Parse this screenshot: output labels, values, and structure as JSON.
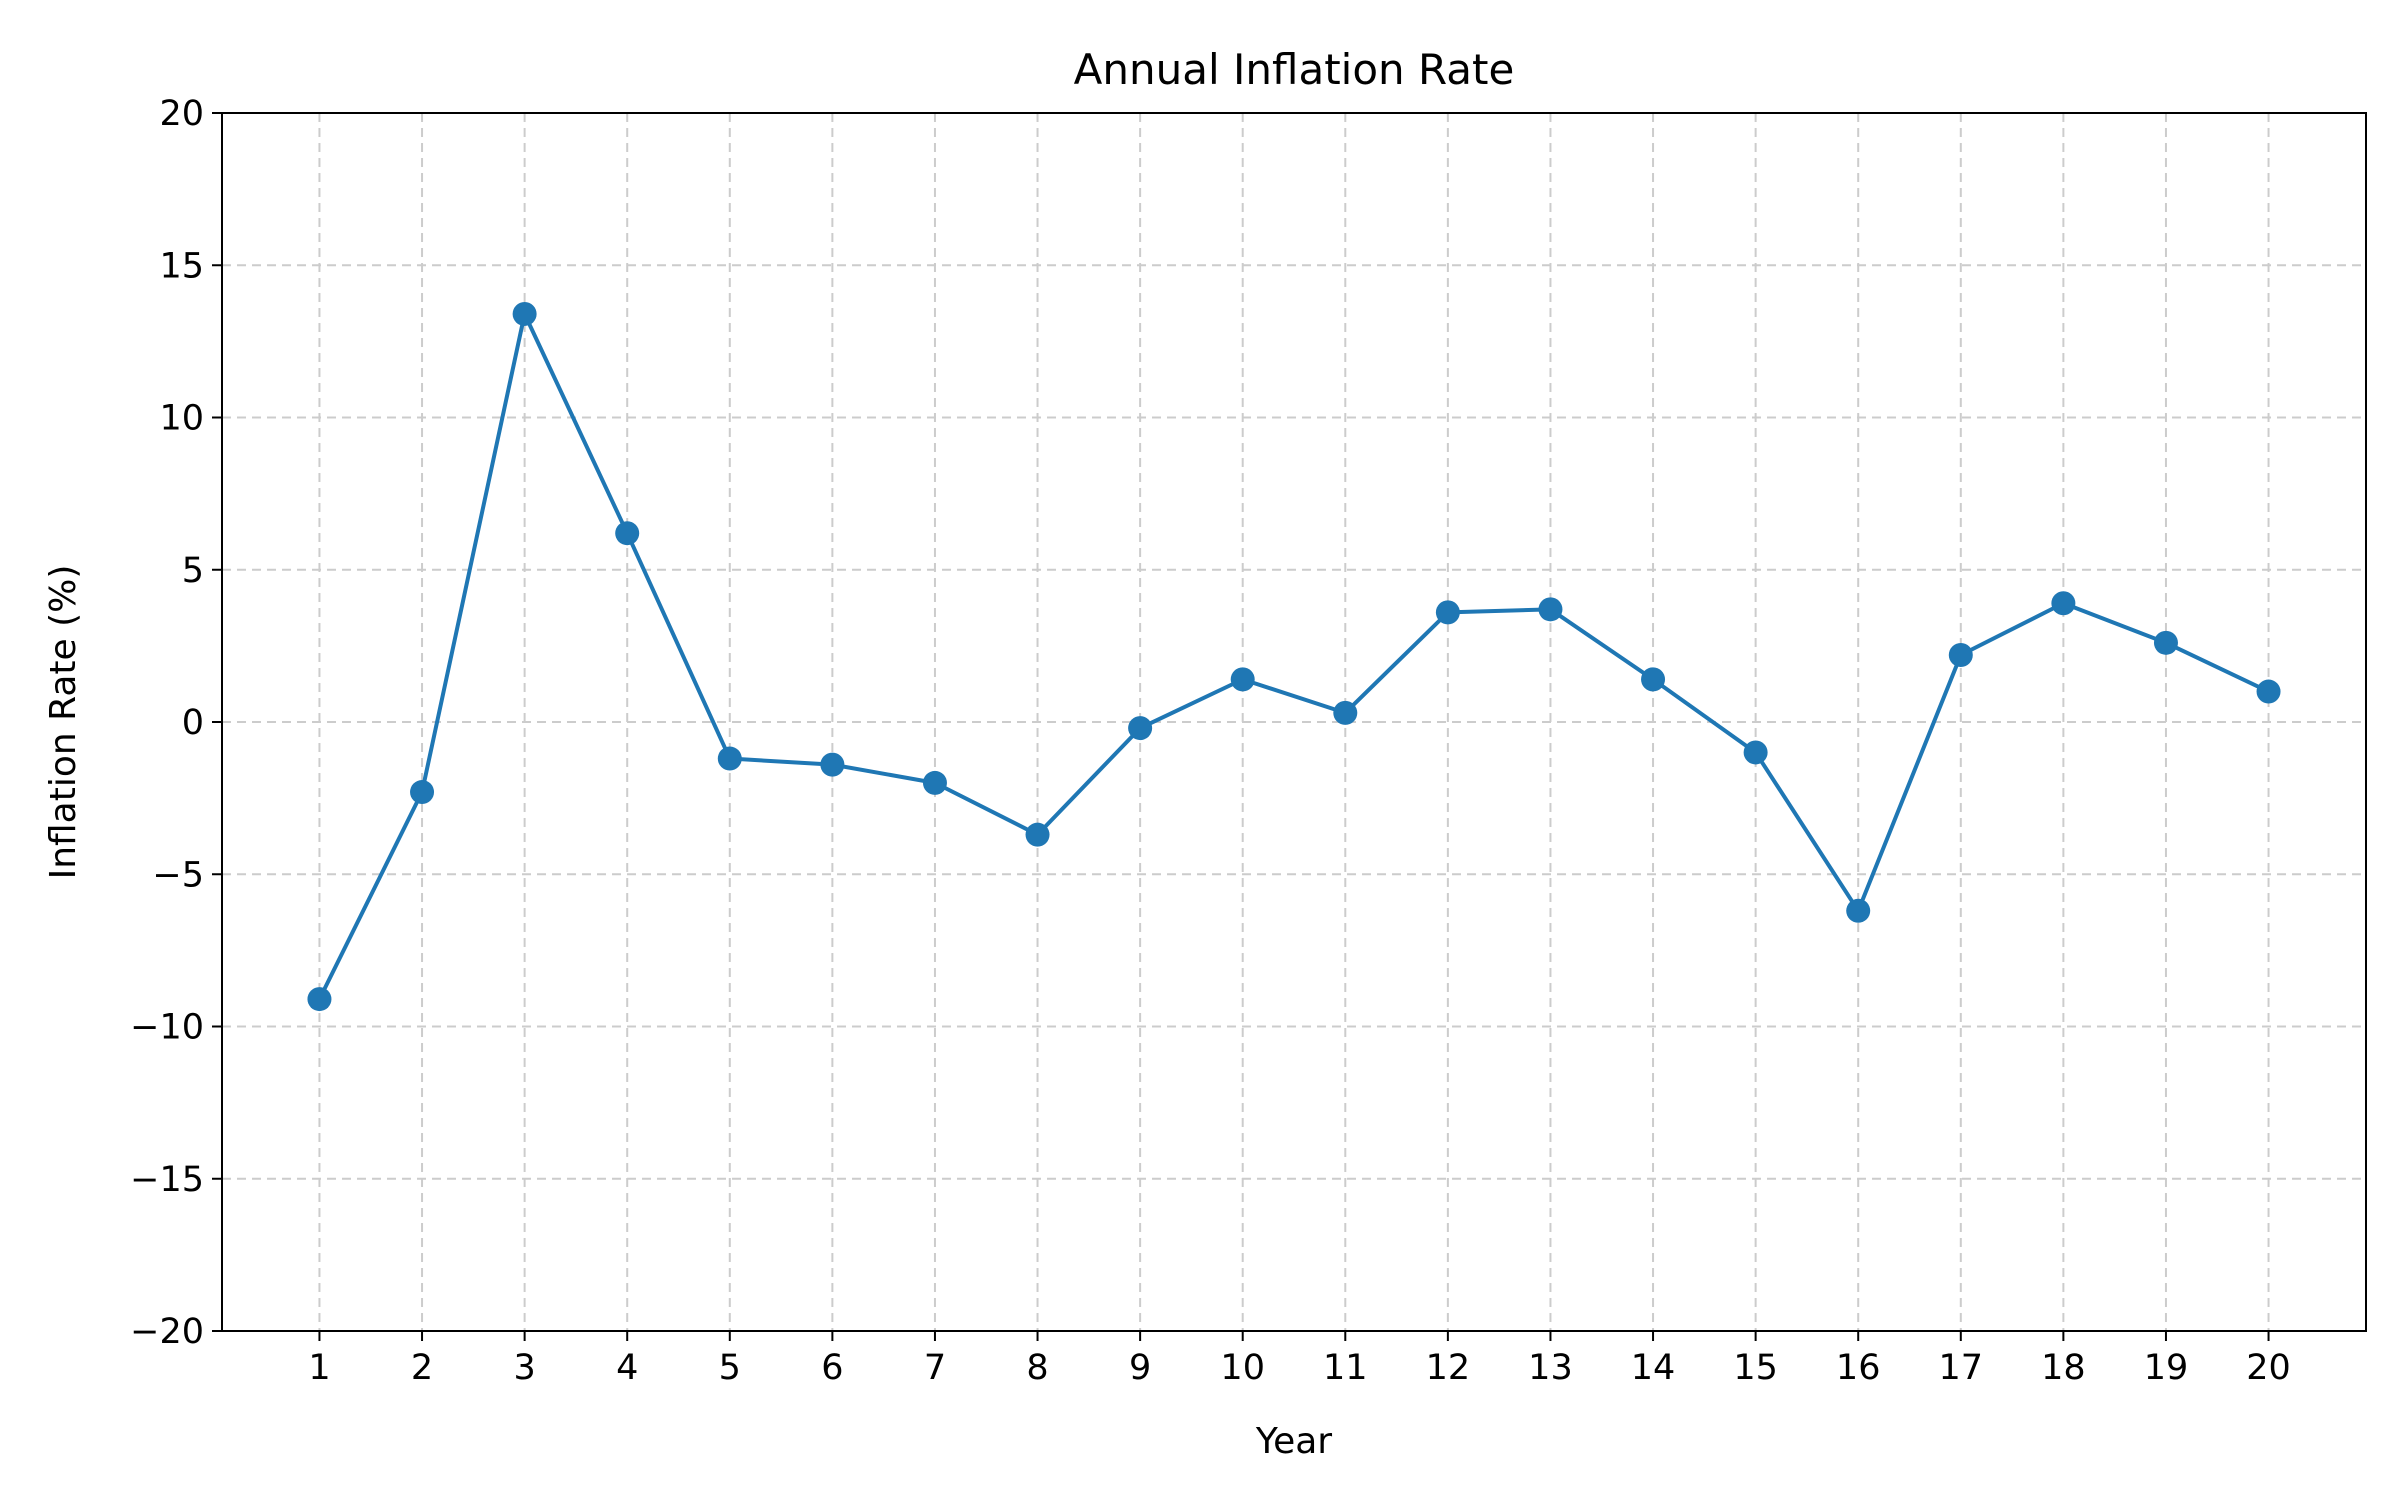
{
  "chart_data": {
    "type": "line",
    "title": "Annual Inflation Rate",
    "xlabel": "Year",
    "ylabel": "Inflation Rate (%)",
    "x": [
      1,
      2,
      3,
      4,
      5,
      6,
      7,
      8,
      9,
      10,
      11,
      12,
      13,
      14,
      15,
      16,
      17,
      18,
      19,
      20
    ],
    "x_tick_labels": [
      "1",
      "2",
      "3",
      "4",
      "5",
      "6",
      "7",
      "8",
      "9",
      "10",
      "11",
      "12",
      "13",
      "14",
      "15",
      "16",
      "17",
      "18",
      "19",
      "20"
    ],
    "y_ticks": [
      20,
      15,
      10,
      5,
      0,
      -5,
      -10,
      -15,
      -20
    ],
    "y_tick_labels": [
      "20",
      "15",
      "10",
      "5",
      "0",
      "−5",
      "−10",
      "−15",
      "−20"
    ],
    "xlim": [
      0.05,
      20.95
    ],
    "ylim": [
      -20,
      20
    ],
    "grid": true,
    "series": [
      {
        "values": [
          -9.1,
          -2.3,
          13.4,
          6.2,
          -1.2,
          -1.4,
          -2.0,
          -3.7,
          -0.2,
          1.4,
          0.3,
          3.6,
          3.7,
          1.4,
          -1.0,
          -6.2,
          2.2,
          3.9,
          2.6,
          1.0
        ],
        "color": "#1f77b4",
        "marker": "circle"
      }
    ]
  }
}
